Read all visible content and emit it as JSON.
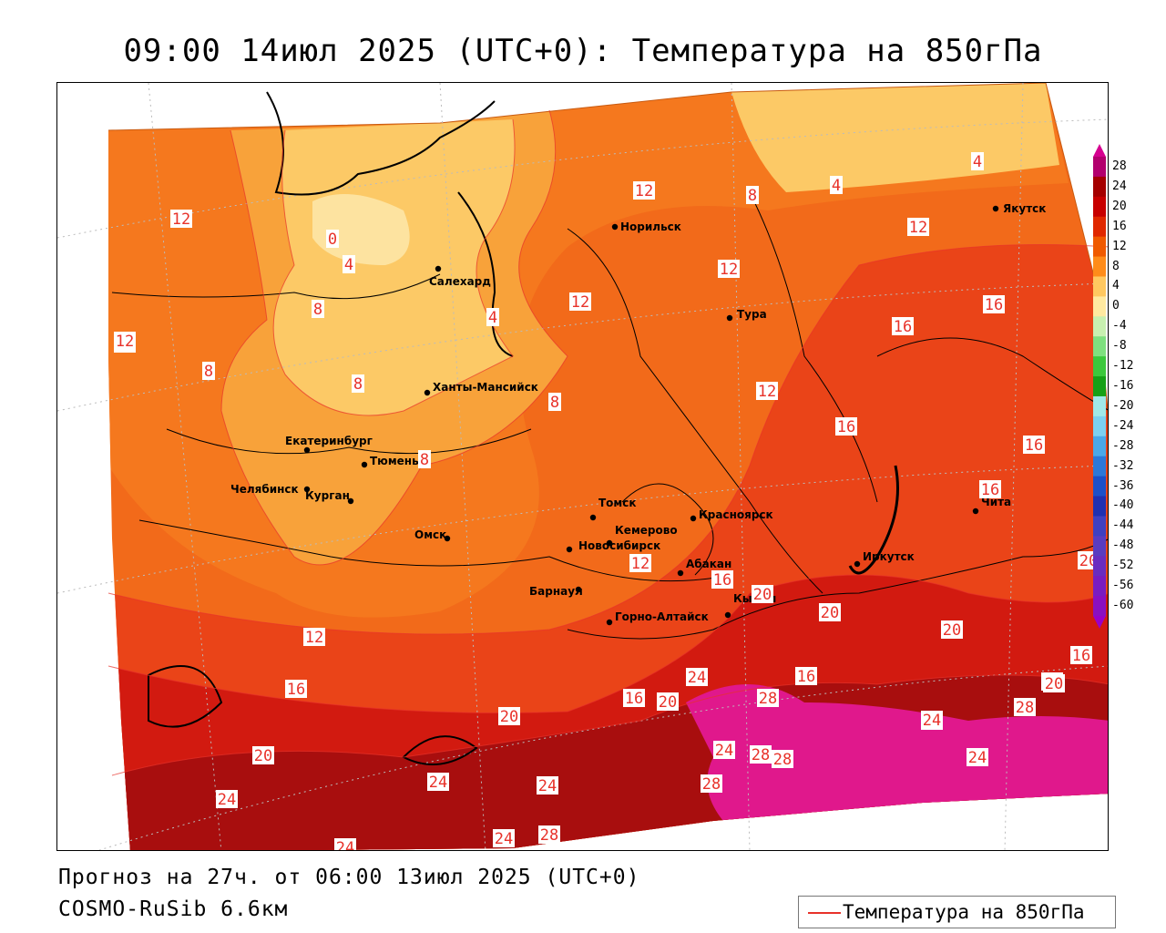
{
  "title": "09:00 14июл 2025 (UTC+0): Температура на 850гПа",
  "footer": {
    "forecast": "Прогноз на 27ч. от 06:00 13июл 2025 (UTC+0)",
    "model": "COSMO-RuSib 6.6км"
  },
  "legend": {
    "label": "Температура на 850гПа",
    "line_color": "#e8322a"
  },
  "colorbar": {
    "levels": [
      "28",
      "24",
      "20",
      "16",
      "12",
      "8",
      "4",
      "0",
      "-4",
      "-8",
      "-12",
      "-16",
      "-20",
      "-24",
      "-28",
      "-32",
      "-36",
      "-40",
      "-44",
      "-48",
      "-52",
      "-56",
      "-60"
    ],
    "colors": [
      "#b3006e",
      "#a50000",
      "#c80000",
      "#e02800",
      "#f05a00",
      "#ff8c1a",
      "#ffc860",
      "#ffe9a0",
      "#c8f0b0",
      "#7fe07f",
      "#3cc83c",
      "#16a016",
      "#a0e8e8",
      "#7cd0f0",
      "#4aa8e8",
      "#2c78d8",
      "#1c50c8",
      "#2030b0",
      "#4040c0",
      "#5a3cc0",
      "#6a2cc0",
      "#7a1cc0",
      "#8a10c0"
    ],
    "top_color": "#d60090",
    "bottom_color": "#9a00c8"
  },
  "cities": [
    {
      "name": "Норильск"
    },
    {
      "name": "Якутск"
    },
    {
      "name": "Салехард"
    },
    {
      "name": "Тура"
    },
    {
      "name": "Ханты-Мансийск"
    },
    {
      "name": "Екатеринбург"
    },
    {
      "name": "Тюмень"
    },
    {
      "name": "Челябинск"
    },
    {
      "name": "Курган"
    },
    {
      "name": "Томск"
    },
    {
      "name": "Красноярск"
    },
    {
      "name": "Чита"
    },
    {
      "name": "Омск"
    },
    {
      "name": "Новосибирск"
    },
    {
      "name": "Кемерово"
    },
    {
      "name": "Абакан"
    },
    {
      "name": "Иркутск"
    },
    {
      "name": "Барнаул"
    },
    {
      "name": "Горно-Алтайск"
    },
    {
      "name": "Кызыл"
    }
  ],
  "isotherm_labels": [
    "12",
    "0",
    "4",
    "4",
    "12",
    "8",
    "4",
    "8",
    "12",
    "4",
    "12",
    "12",
    "8",
    "8",
    "12",
    "8",
    "12",
    "16",
    "16",
    "12",
    "16",
    "8",
    "8",
    "16",
    "16",
    "12",
    "20",
    "16",
    "20",
    "20",
    "12",
    "16",
    "20",
    "16",
    "16",
    "24",
    "20",
    "24",
    "20",
    "28",
    "24",
    "28",
    "28",
    "28",
    "24",
    "20",
    "24",
    "24",
    "28",
    "24",
    "24",
    "20",
    "28",
    "24",
    "16",
    "24",
    "20"
  ]
}
